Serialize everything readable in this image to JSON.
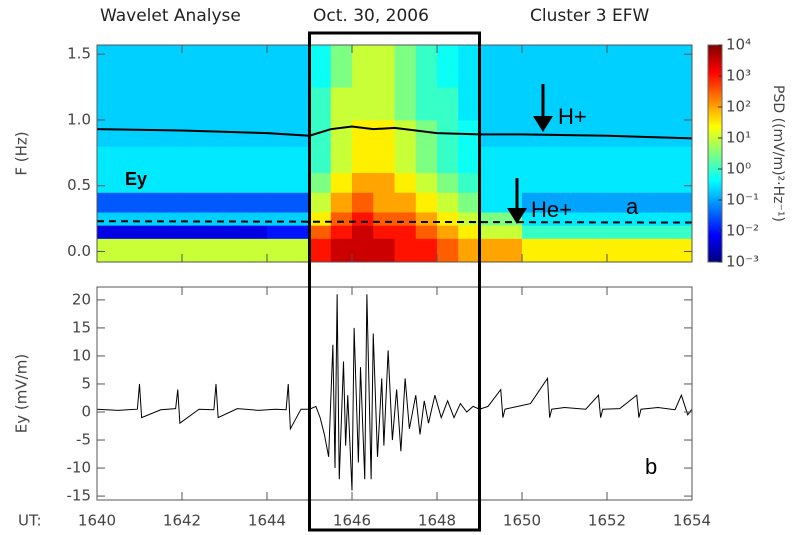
{
  "chart_data": [
    {
      "type": "heatmap",
      "title": [
        "Wavelet Analyse",
        "Oct. 30, 2006",
        "Cluster 3 EFW"
      ],
      "ylabel": "F (Hz)",
      "x_bins": [
        1640,
        1641,
        1642,
        1643,
        1644,
        1645,
        1645.5,
        1646,
        1646.5,
        1647,
        1647.5,
        1648,
        1648.5,
        1649,
        1650,
        1651,
        1652,
        1653,
        1654
      ],
      "y_bins": [
        -0.08,
        0.1,
        0.2,
        0.3,
        0.45,
        0.6,
        0.8,
        1.0,
        1.25,
        1.57
      ],
      "z": [
        [
          10,
          10,
          10,
          10,
          10,
          1000,
          3000,
          3000,
          3000,
          1000,
          1000,
          300,
          100,
          100,
          30,
          30,
          30,
          30
        ],
        [
          0.005,
          0.005,
          0.005,
          0.005,
          0.01,
          300,
          1000,
          3000,
          1000,
          1000,
          300,
          100,
          30,
          10,
          1,
          1,
          1,
          1
        ],
        [
          0.2,
          0.2,
          0.2,
          0.2,
          0.2,
          30,
          300,
          1000,
          300,
          300,
          100,
          30,
          10,
          3,
          0.3,
          0.3,
          0.3,
          0.3
        ],
        [
          0.03,
          0.03,
          0.03,
          0.03,
          0.03,
          10,
          100,
          300,
          100,
          100,
          30,
          10,
          3,
          0.3,
          0.1,
          0.1,
          0.1,
          0.1
        ],
        [
          0.3,
          0.3,
          0.3,
          0.3,
          0.3,
          3,
          30,
          100,
          100,
          30,
          10,
          3,
          1,
          0.3,
          0.3,
          0.3,
          0.3,
          0.3
        ],
        [
          0.3,
          0.3,
          0.3,
          0.3,
          0.3,
          1,
          10,
          30,
          30,
          10,
          3,
          1,
          0.5,
          0.3,
          0.3,
          0.3,
          0.3,
          0.3
        ],
        [
          0.2,
          0.2,
          0.2,
          0.2,
          0.2,
          1,
          10,
          30,
          30,
          10,
          3,
          1,
          0.5,
          0.2,
          0.2,
          0.2,
          0.2,
          0.2
        ],
        [
          0.2,
          0.2,
          0.2,
          0.2,
          0.2,
          1,
          10,
          10,
          10,
          3,
          1,
          1,
          0.3,
          0.2,
          0.2,
          0.2,
          0.2,
          0.2
        ],
        [
          0.2,
          0.2,
          0.2,
          0.2,
          0.2,
          0.5,
          3,
          10,
          10,
          3,
          1,
          0.5,
          0.3,
          0.2,
          0.2,
          0.2,
          0.2,
          0.2
        ]
      ],
      "colorbar": {
        "label": "PSD ((mV/m)²·Hz⁻¹)",
        "log": true,
        "lim": [
          0.001,
          10000
        ],
        "ticks": [
          {
            "value": 10000,
            "label": "10⁴"
          },
          {
            "value": 1000,
            "label": "10³"
          },
          {
            "value": 100,
            "label": "10²"
          },
          {
            "value": 10,
            "label": "10¹"
          },
          {
            "value": 1,
            "label": "10⁰"
          },
          {
            "value": 0.1,
            "label": "10⁻¹"
          },
          {
            "value": 0.01,
            "label": "10⁻²"
          },
          {
            "value": 0.001,
            "label": "10⁻³"
          }
        ]
      },
      "series": [
        {
          "name": "H+",
          "color": "#000000",
          "dash": false,
          "x": [
            1640,
            1642,
            1644,
            1645,
            1645.5,
            1646,
            1646.5,
            1647,
            1647.5,
            1648,
            1649,
            1650,
            1652,
            1654
          ],
          "values": [
            0.93,
            0.92,
            0.9,
            0.88,
            0.93,
            0.95,
            0.93,
            0.94,
            0.92,
            0.9,
            0.89,
            0.89,
            0.88,
            0.86
          ]
        },
        {
          "name": "He+",
          "color": "#000000",
          "dash": true,
          "x": [
            1640,
            1654
          ],
          "values": [
            0.23,
            0.22
          ]
        }
      ],
      "annotations": [
        "Ey",
        "a"
      ],
      "xlim": [
        1640,
        1654
      ],
      "xticks": [
        1640,
        1642,
        1644,
        1646,
        1648,
        1650,
        1652,
        1654
      ],
      "ylim": [
        -0.08,
        1.57
      ],
      "yticks": [
        {
          "value": 0,
          "label": "0.0"
        },
        0.5,
        {
          "value": 1,
          "label": "1.0"
        },
        1.5
      ]
    },
    {
      "type": "line",
      "ylabel": "Ey (mV/m)",
      "xlabel": "UT:",
      "annotations": [
        "b"
      ],
      "series": [
        {
          "color": "#000000",
          "x": [
            1640,
            1640.5,
            1640.95,
            1641,
            1641.05,
            1641.5,
            1641.85,
            1641.9,
            1641.95,
            1642.4,
            1642.75,
            1642.8,
            1642.85,
            1643.3,
            1643.8,
            1644.2,
            1644.45,
            1644.5,
            1644.55,
            1644.8,
            1645,
            1645.15,
            1645.25,
            1645.35,
            1645.45,
            1645.55,
            1645.6,
            1645.65,
            1645.7,
            1645.8,
            1645.85,
            1645.9,
            1646,
            1646.05,
            1646.15,
            1646.2,
            1646.3,
            1646.35,
            1646.45,
            1646.5,
            1646.6,
            1646.7,
            1646.75,
            1646.85,
            1646.95,
            1647.05,
            1647.15,
            1647.25,
            1647.35,
            1647.5,
            1647.6,
            1647.7,
            1647.8,
            1647.95,
            1648.1,
            1648.25,
            1648.4,
            1648.55,
            1648.7,
            1648.85,
            1649,
            1649.2,
            1649.5,
            1649.55,
            1649.6,
            1649.9,
            1650.2,
            1650.6,
            1650.65,
            1650.7,
            1651,
            1651.5,
            1651.8,
            1651.85,
            1651.9,
            1652.3,
            1652.7,
            1652.75,
            1652.8,
            1653.2,
            1653.6,
            1653.75,
            1653.9,
            1654
          ],
          "values": [
            0.5,
            0.3,
            0.5,
            5,
            -1,
            0.4,
            0.6,
            4,
            -2,
            0.5,
            0.4,
            5,
            -1,
            0.6,
            0.3,
            0.5,
            0.4,
            5,
            -3,
            0.5,
            0.5,
            1,
            -1,
            -4,
            -8,
            12,
            -10,
            21,
            -12,
            9,
            -6,
            3,
            -14,
            15,
            -9,
            8,
            -12,
            21,
            -12,
            14,
            -8,
            6,
            -6,
            11,
            -5,
            4,
            -7,
            6,
            -3,
            3,
            -4,
            2,
            -2,
            3,
            -1,
            2,
            -1,
            1.5,
            0,
            1,
            0.5,
            1,
            4,
            -1,
            0.5,
            1,
            1.5,
            6,
            -1,
            0.5,
            0.8,
            0.5,
            3,
            -1,
            0.5,
            0.6,
            3,
            -1,
            0.5,
            0.8,
            0.4,
            3,
            -0.5,
            0.5
          ]
        }
      ],
      "xlim": [
        1640,
        1654
      ],
      "xticks": [
        1640,
        1642,
        1644,
        1646,
        1648,
        1650,
        1652,
        1654
      ],
      "ylim": [
        -15.7,
        22.3
      ],
      "yticks": [
        -15,
        -10,
        -5,
        0,
        5,
        10,
        15,
        20
      ]
    }
  ],
  "highlight_box": [
    1645,
    1649
  ]
}
